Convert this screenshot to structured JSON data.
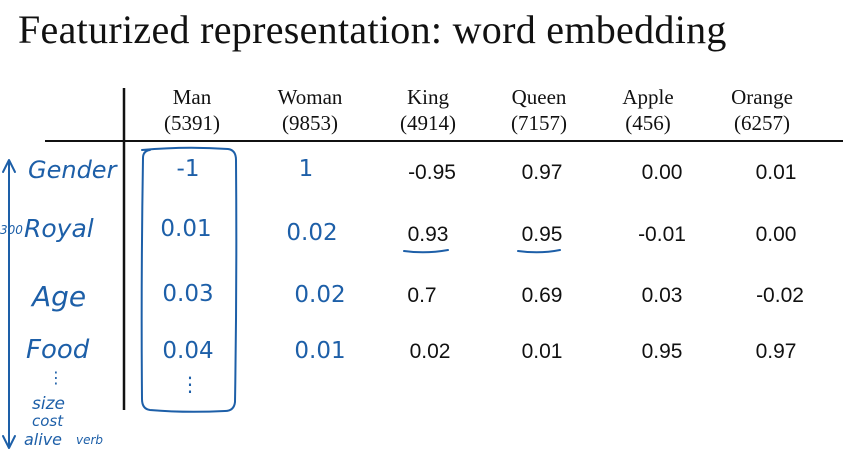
{
  "slide": {
    "title": "Featurized representation: word embedding"
  },
  "table": {
    "columns": [
      {
        "word": "Man",
        "index": "(5391)"
      },
      {
        "word": "Woman",
        "index": "(9853)"
      },
      {
        "word": "King",
        "index": "(4914)"
      },
      {
        "word": "Queen",
        "index": "(7157)"
      },
      {
        "word": "Apple",
        "index": "(456)"
      },
      {
        "word": "Orange",
        "index": "(6257)"
      }
    ],
    "rows": [
      {
        "feature": "Gender",
        "man": "-1",
        "woman": "1",
        "king": "-0.95",
        "queen": "0.97",
        "apple": "0.00",
        "orange": "0.01"
      },
      {
        "feature": "Royal",
        "man": "0.01",
        "woman": "0.02",
        "king": "0.93",
        "queen": "0.95",
        "apple": "-0.01",
        "orange": "0.00"
      },
      {
        "feature": "Age",
        "man": "0.03",
        "woman": "0.02",
        "king": "0.7",
        "queen": "0.69",
        "apple": "0.03",
        "orange": "-0.02"
      },
      {
        "feature": "Food",
        "man": "0.04",
        "woman": "0.01",
        "king": "0.02",
        "queen": "0.01",
        "apple": "0.95",
        "orange": "0.97"
      }
    ]
  },
  "annotations": {
    "dimension_count": "300",
    "ellipsis": "⋮",
    "extra_features": [
      "size",
      "cost",
      "alive",
      "verb"
    ],
    "ink_color": "#1d5fa8"
  }
}
